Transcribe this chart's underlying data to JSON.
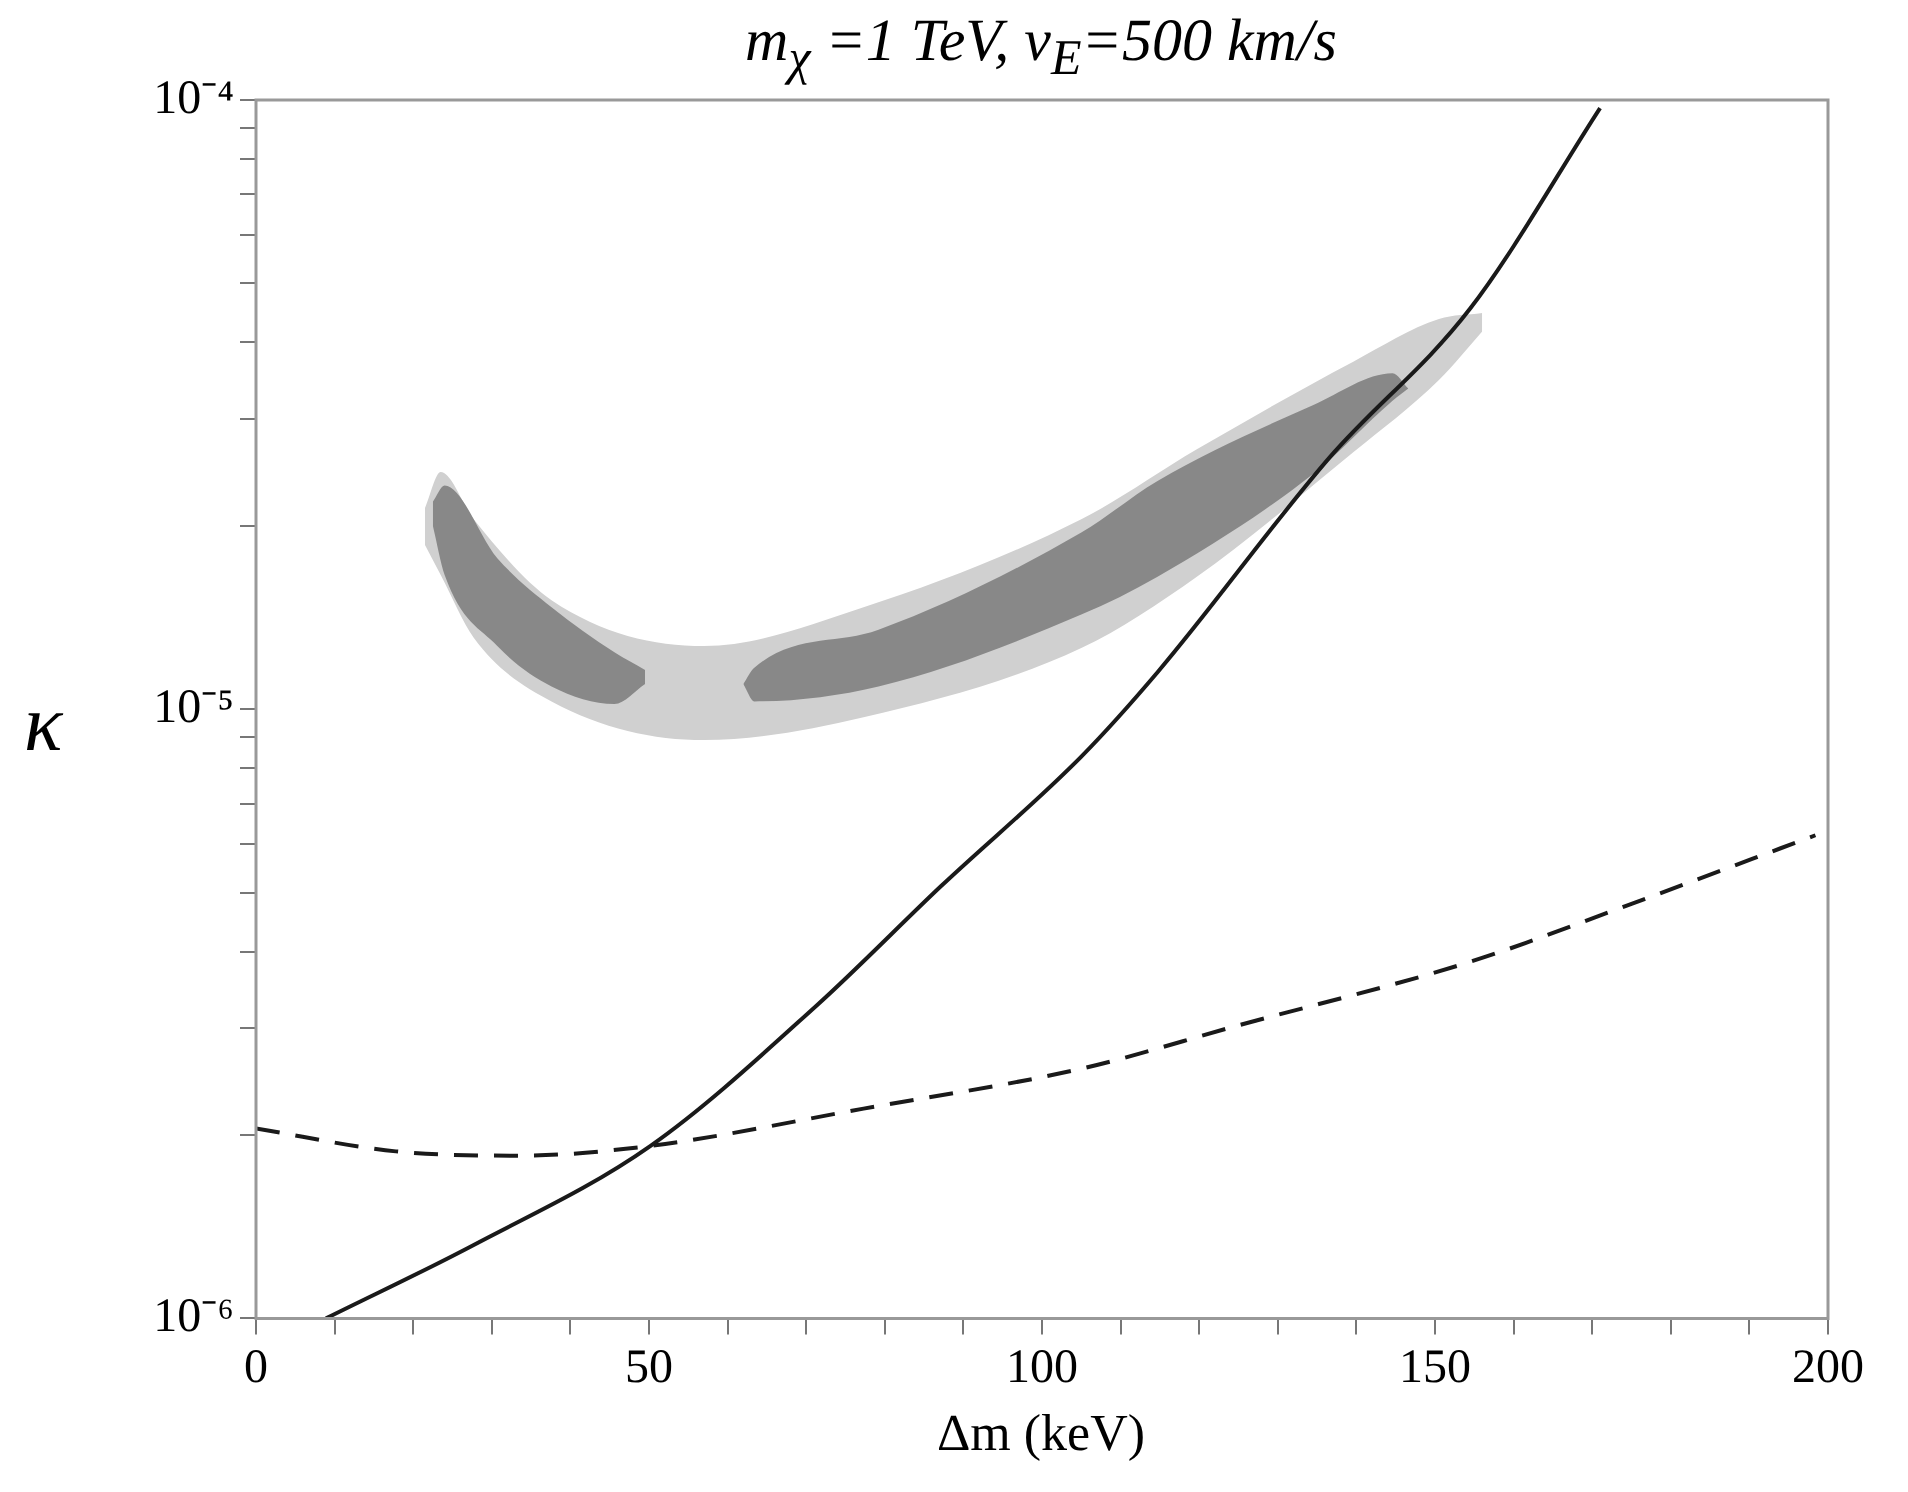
{
  "chart_data": {
    "type": "line",
    "title": "m$_{χ}$ =1 TeV, v$_{E}$=500 km/s",
    "xlabel": "Δm (keV)",
    "ylabel": "κ",
    "log": "y",
    "grid": false,
    "legend": false,
    "marker": "none",
    "xlim": [
      0,
      200
    ],
    "xticks": [
      0,
      {
        "value": 10,
        "label": null
      },
      {
        "value": 20,
        "label": null
      },
      {
        "value": 30,
        "label": null
      },
      {
        "value": 40,
        "label": null
      },
      50,
      {
        "value": 60,
        "label": null
      },
      {
        "value": 70,
        "label": null
      },
      {
        "value": 80,
        "label": null
      },
      {
        "value": 90,
        "label": null
      },
      100,
      {
        "value": 110,
        "label": null
      },
      {
        "value": 120,
        "label": null
      },
      {
        "value": 130,
        "label": null
      },
      {
        "value": 140,
        "label": null
      },
      150,
      {
        "value": 160,
        "label": null
      },
      {
        "value": 170,
        "label": null
      },
      {
        "value": 180,
        "label": null
      },
      {
        "value": 190,
        "label": null
      },
      200
    ],
    "ylim": [
      1e-06,
      0.0001
    ],
    "yticks": [
      {
        "value": 1e-06,
        "label": "10⁻⁶"
      },
      {
        "value": 2e-06,
        "label": null
      },
      {
        "value": 3e-06,
        "label": null
      },
      {
        "value": 4e-06,
        "label": null
      },
      {
        "value": 5e-06,
        "label": null
      },
      {
        "value": 6e-06,
        "label": null
      },
      {
        "value": 7e-06,
        "label": null
      },
      {
        "value": 8e-06,
        "label": null
      },
      {
        "value": 9e-06,
        "label": null
      },
      {
        "value": 1e-05,
        "label": "10⁻⁵"
      },
      {
        "value": 2e-05,
        "label": null
      },
      {
        "value": 3e-05,
        "label": null
      },
      {
        "value": 4e-05,
        "label": null
      },
      {
        "value": 5e-05,
        "label": null
      },
      {
        "value": 6e-05,
        "label": null
      },
      {
        "value": 7e-05,
        "label": null
      },
      {
        "value": 8e-05,
        "label": null
      },
      {
        "value": 9e-05,
        "label": null
      },
      {
        "value": 0.0001,
        "label": "10⁻⁴"
      }
    ],
    "series": [
      {
        "type": "area",
        "color": "#d0d0d0",
        "x": [
          21.5,
          23.5,
          27.7,
          37.6,
          57,
          77.3,
          105,
          119.7,
          139.6,
          150.5,
          156
        ],
        "values": [
          null,
          null,
          null,
          null,
          null,
          null,
          null,
          null,
          null,
          null,
          null
        ],
        "upper": [
          2.14e-05,
          2.45e-05,
          2.05e-05,
          1.51e-05,
          1.27e-05,
          1.47e-05,
          2.05e-05,
          2.67e-05,
          3.72e-05,
          4.37e-05,
          4.47e-05
        ],
        "lower": [
          1.86e-05,
          1.66e-05,
          1.31e-05,
          1.03e-05,
          8.9e-06,
          9.7e-06,
          1.26e-05,
          1.65e-05,
          2.64e-05,
          3.47e-05,
          4.17e-05
        ]
      },
      {
        "type": "area",
        "color": "#888888",
        "x": [
          22.5,
          24,
          30.7,
          37.6,
          45.6,
          49.5
        ],
        "values": [
          null,
          null,
          null,
          null,
          null,
          null
        ],
        "upper": [
          2.19e-05,
          2.33e-05,
          1.77e-05,
          1.47e-05,
          1.24e-05,
          1.16e-05
        ],
        "lower": [
          2e-05,
          1.66e-05,
          1.27e-05,
          1.09e-05,
          1.02e-05,
          1.1e-05
        ]
      },
      {
        "type": "area",
        "color": "#888888",
        "x": [
          62,
          63.4,
          79.2,
          105,
          114.7,
          134.6,
          144.6,
          146.6
        ],
        "values": [
          null,
          null,
          null,
          null,
          null,
          null,
          null,
          null
        ],
        "upper": [
          1.1e-05,
          1.17e-05,
          1.35e-05,
          1.95e-05,
          2.37e-05,
          3.16e-05,
          3.56e-05,
          3.36e-05
        ],
        "lower": [
          1.1e-05,
          1.03e-05,
          1.09e-05,
          1.43e-05,
          1.65e-05,
          2.44e-05,
          3.21e-05,
          3.36e-05
        ]
      },
      {
        "type": "line",
        "color": "#1a1a1a",
        "line_style": "solid",
        "x": [
          8.9,
          27.7,
          50.2,
          71.3,
          87.2,
          105,
          114.7,
          136.6,
          154.5,
          171
        ],
        "values": [
          1e-06,
          1.32e-06,
          1.92e-06,
          3.26e-06,
          5.13e-06,
          8.36e-06,
          1.15e-05,
          2.59e-05,
          4.55e-05,
          9.7e-05
        ]
      },
      {
        "type": "line",
        "color": "#1a1a1a",
        "line_style": "dashed",
        "x": [
          0,
          17.8,
          33.6,
          50.2,
          77.3,
          105,
          124.7,
          154.5,
          174.4,
          198.4
        ],
        "values": [
          2.05e-06,
          1.88e-06,
          1.85e-06,
          1.92e-06,
          2.21e-06,
          2.57e-06,
          3.02e-06,
          3.85e-06,
          4.76e-06,
          6.21e-06
        ]
      }
    ]
  }
}
